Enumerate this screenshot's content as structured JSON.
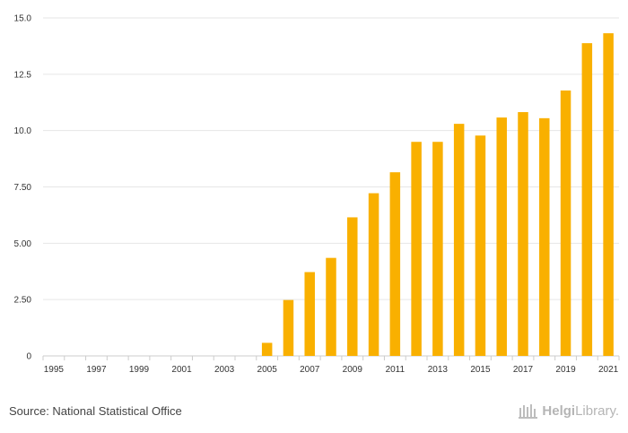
{
  "chart_data": {
    "type": "bar",
    "categories": [
      "1995",
      "1996",
      "1997",
      "1998",
      "1999",
      "2000",
      "2001",
      "2002",
      "2003",
      "2004",
      "2005",
      "2006",
      "2007",
      "2008",
      "2009",
      "2010",
      "2011",
      "2012",
      "2013",
      "2014",
      "2015",
      "2016",
      "2017",
      "2018",
      "2019",
      "2020",
      "2021"
    ],
    "x_tick_labels": [
      "1995",
      "1997",
      "1999",
      "2001",
      "2003",
      "2005",
      "2007",
      "2009",
      "2011",
      "2013",
      "2015",
      "2017",
      "2019",
      "2021"
    ],
    "values": [
      null,
      null,
      null,
      null,
      null,
      null,
      null,
      null,
      null,
      null,
      0.58,
      2.48,
      3.72,
      4.35,
      6.15,
      7.22,
      8.15,
      9.5,
      9.5,
      10.3,
      9.78,
      10.58,
      10.82,
      10.55,
      11.78,
      13.88,
      14.32
    ],
    "ylim": [
      0,
      15
    ],
    "y_ticks": [
      0,
      2.5,
      5,
      7.5,
      10,
      12.5,
      15
    ],
    "y_tick_labels": [
      "0",
      "2.50",
      "5.00",
      "7.50",
      "10.0",
      "12.5",
      "15.0"
    ],
    "title": "",
    "xlabel": "",
    "ylabel": "",
    "bar_color": "#f9b000",
    "grid": true
  },
  "footer": {
    "source": "Source: National Statistical Office",
    "brand_helgi": "Helgi",
    "brand_library": "Library."
  }
}
